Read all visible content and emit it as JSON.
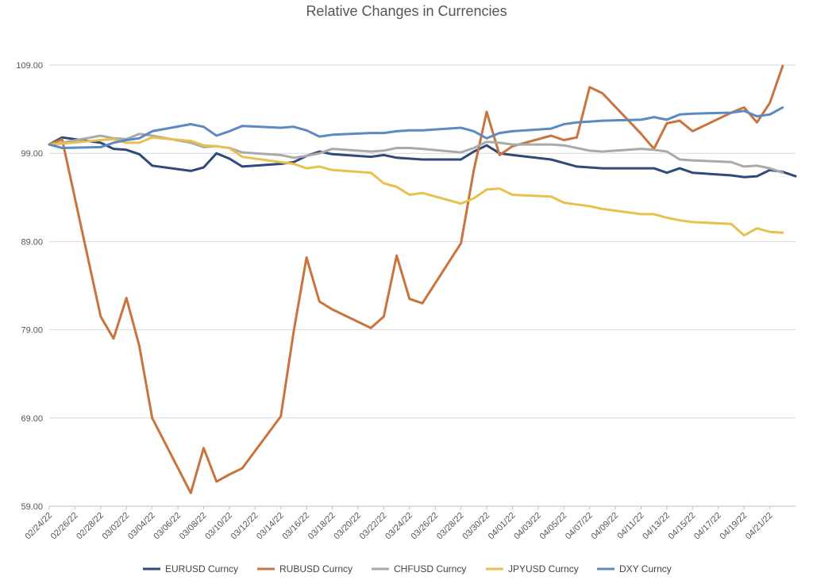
{
  "chart_data": {
    "type": "line",
    "title": "Relative Changes in Currencies",
    "xlabel": "",
    "ylabel": "",
    "ylim": [
      59,
      109
    ],
    "yticks": [
      "59.00",
      "69.00",
      "79.00",
      "89.00",
      "99.00",
      "109.00"
    ],
    "x_tick_labels": [
      "02/24/22",
      "02/26/22",
      "02/28/22",
      "03/02/22",
      "03/04/22",
      "03/06/22",
      "03/08/22",
      "03/10/22",
      "03/12/22",
      "03/14/22",
      "03/16/22",
      "03/18/22",
      "03/20/22",
      "03/22/22",
      "03/24/22",
      "03/26/22",
      "03/28/22",
      "03/30/22",
      "04/01/22",
      "04/03/22",
      "04/05/22",
      "04/07/22",
      "04/09/22",
      "04/11/22",
      "04/13/22",
      "04/15/22",
      "04/17/22",
      "04/19/22",
      "04/21/22"
    ],
    "grid": true,
    "legend_position": "bottom",
    "series": [
      {
        "name": "EURUSD Curncy",
        "color": "#2E4A7A",
        "points": [
          [
            "02/24/22",
            100.0
          ],
          [
            "02/25/22",
            100.8
          ],
          [
            "02/28/22",
            100.2
          ],
          [
            "03/01/22",
            99.5
          ],
          [
            "03/02/22",
            99.4
          ],
          [
            "03/03/22",
            98.9
          ],
          [
            "03/04/22",
            97.6
          ],
          [
            "03/07/22",
            97.0
          ],
          [
            "03/08/22",
            97.4
          ],
          [
            "03/09/22",
            99.0
          ],
          [
            "03/10/22",
            98.4
          ],
          [
            "03/11/22",
            97.5
          ],
          [
            "03/14/22",
            97.8
          ],
          [
            "03/15/22",
            98.0
          ],
          [
            "03/16/22",
            98.7
          ],
          [
            "03/17/22",
            99.2
          ],
          [
            "03/18/22",
            98.9
          ],
          [
            "03/21/22",
            98.6
          ],
          [
            "03/22/22",
            98.8
          ],
          [
            "03/23/22",
            98.5
          ],
          [
            "03/24/22",
            98.4
          ],
          [
            "03/25/22",
            98.3
          ],
          [
            "03/28/22",
            98.3
          ],
          [
            "03/29/22",
            99.2
          ],
          [
            "03/30/22",
            99.9
          ],
          [
            "03/31/22",
            99.0
          ],
          [
            "04/01/22",
            98.8
          ],
          [
            "04/04/22",
            98.3
          ],
          [
            "04/05/22",
            97.9
          ],
          [
            "04/06/22",
            97.5
          ],
          [
            "04/07/22",
            97.4
          ],
          [
            "04/08/22",
            97.3
          ],
          [
            "04/11/22",
            97.3
          ],
          [
            "04/12/22",
            97.3
          ],
          [
            "04/13/22",
            96.8
          ],
          [
            "04/14/22",
            97.3
          ],
          [
            "04/15/22",
            96.8
          ],
          [
            "04/18/22",
            96.5
          ],
          [
            "04/19/22",
            96.3
          ],
          [
            "04/20/22",
            96.4
          ],
          [
            "04/21/22",
            97.1
          ],
          [
            "04/22/22",
            96.9
          ],
          [
            "04/23/22",
            96.4
          ]
        ]
      },
      {
        "name": "RUBUSD Curncy",
        "color": "#C9733D",
        "points": [
          [
            "02/24/22",
            100.0
          ],
          [
            "02/25/22",
            100.6
          ],
          [
            "02/28/22",
            80.5
          ],
          [
            "03/01/22",
            78.0
          ],
          [
            "03/02/22",
            82.6
          ],
          [
            "03/03/22",
            77.2
          ],
          [
            "03/04/22",
            69.0
          ],
          [
            "03/07/22",
            60.5
          ],
          [
            "03/08/22",
            65.6
          ],
          [
            "03/09/22",
            61.8
          ],
          [
            "03/10/22",
            62.6
          ],
          [
            "03/11/22",
            63.3
          ],
          [
            "03/14/22",
            69.2
          ],
          [
            "03/15/22",
            78.8
          ],
          [
            "03/16/22",
            87.2
          ],
          [
            "03/17/22",
            82.2
          ],
          [
            "03/18/22",
            81.3
          ],
          [
            "03/21/22",
            79.2
          ],
          [
            "03/22/22",
            80.5
          ],
          [
            "03/23/22",
            87.4
          ],
          [
            "03/24/22",
            82.5
          ],
          [
            "03/25/22",
            82.0
          ],
          [
            "03/28/22",
            88.8
          ],
          [
            "03/29/22",
            97.1
          ],
          [
            "03/30/22",
            103.7
          ],
          [
            "03/31/22",
            98.8
          ],
          [
            "04/01/22",
            99.8
          ],
          [
            "04/04/22",
            101.0
          ],
          [
            "04/05/22",
            100.5
          ],
          [
            "04/06/22",
            100.8
          ],
          [
            "04/07/22",
            106.5
          ],
          [
            "04/08/22",
            105.8
          ],
          [
            "04/11/22",
            101.2
          ],
          [
            "04/12/22",
            99.5
          ],
          [
            "04/13/22",
            102.4
          ],
          [
            "04/14/22",
            102.7
          ],
          [
            "04/15/22",
            101.5
          ],
          [
            "04/18/22",
            103.6
          ],
          [
            "04/19/22",
            104.2
          ],
          [
            "04/20/22",
            102.5
          ],
          [
            "04/21/22",
            104.7
          ],
          [
            "04/22/22",
            108.9
          ]
        ]
      },
      {
        "name": "CHFUSD Curncy",
        "color": "#AAAAAA",
        "points": [
          [
            "02/24/22",
            100.0
          ],
          [
            "02/25/22",
            100.2
          ],
          [
            "02/28/22",
            101.0
          ],
          [
            "03/01/22",
            100.7
          ],
          [
            "03/02/22",
            100.6
          ],
          [
            "03/03/22",
            101.2
          ],
          [
            "03/04/22",
            101.0
          ],
          [
            "03/07/22",
            100.2
          ],
          [
            "03/08/22",
            99.7
          ],
          [
            "03/09/22",
            99.8
          ],
          [
            "03/10/22",
            99.6
          ],
          [
            "03/11/22",
            99.1
          ],
          [
            "03/14/22",
            98.8
          ],
          [
            "03/15/22",
            98.5
          ],
          [
            "03/16/22",
            98.7
          ],
          [
            "03/17/22",
            99.0
          ],
          [
            "03/18/22",
            99.5
          ],
          [
            "03/21/22",
            99.2
          ],
          [
            "03/22/22",
            99.3
          ],
          [
            "03/23/22",
            99.6
          ],
          [
            "03/24/22",
            99.6
          ],
          [
            "03/25/22",
            99.5
          ],
          [
            "03/28/22",
            99.1
          ],
          [
            "03/29/22",
            99.6
          ],
          [
            "03/30/22",
            100.3
          ],
          [
            "03/31/22",
            100.2
          ],
          [
            "04/01/22",
            100.0
          ],
          [
            "04/04/22",
            100.0
          ],
          [
            "04/05/22",
            99.9
          ],
          [
            "04/06/22",
            99.6
          ],
          [
            "04/07/22",
            99.3
          ],
          [
            "04/08/22",
            99.2
          ],
          [
            "04/11/22",
            99.5
          ],
          [
            "04/12/22",
            99.4
          ],
          [
            "04/13/22",
            99.2
          ],
          [
            "04/14/22",
            98.3
          ],
          [
            "04/15/22",
            98.2
          ],
          [
            "04/18/22",
            98.0
          ],
          [
            "04/19/22",
            97.5
          ],
          [
            "04/20/22",
            97.6
          ],
          [
            "04/21/22",
            97.3
          ],
          [
            "04/22/22",
            96.8
          ]
        ]
      },
      {
        "name": "JPYUSD Curncy",
        "color": "#E8C04C",
        "points": [
          [
            "02/24/22",
            100.0
          ],
          [
            "02/25/22",
            100.1
          ],
          [
            "02/28/22",
            100.5
          ],
          [
            "03/01/22",
            100.6
          ],
          [
            "03/02/22",
            100.2
          ],
          [
            "03/03/22",
            100.2
          ],
          [
            "03/04/22",
            100.8
          ],
          [
            "03/07/22",
            100.4
          ],
          [
            "03/08/22",
            99.9
          ],
          [
            "03/09/22",
            99.8
          ],
          [
            "03/10/22",
            99.6
          ],
          [
            "03/11/22",
            98.6
          ],
          [
            "03/14/22",
            98.0
          ],
          [
            "03/15/22",
            97.8
          ],
          [
            "03/16/22",
            97.3
          ],
          [
            "03/17/22",
            97.5
          ],
          [
            "03/18/22",
            97.1
          ],
          [
            "03/21/22",
            96.8
          ],
          [
            "03/22/22",
            95.6
          ],
          [
            "03/23/22",
            95.2
          ],
          [
            "03/24/22",
            94.3
          ],
          [
            "03/25/22",
            94.5
          ],
          [
            "03/28/22",
            93.3
          ],
          [
            "03/29/22",
            93.9
          ],
          [
            "03/30/22",
            94.9
          ],
          [
            "03/31/22",
            95.0
          ],
          [
            "04/01/22",
            94.3
          ],
          [
            "04/04/22",
            94.1
          ],
          [
            "04/05/22",
            93.4
          ],
          [
            "04/06/22",
            93.2
          ],
          [
            "04/07/22",
            93.0
          ],
          [
            "04/08/22",
            92.7
          ],
          [
            "04/11/22",
            92.1
          ],
          [
            "04/12/22",
            92.1
          ],
          [
            "04/13/22",
            91.7
          ],
          [
            "04/14/22",
            91.4
          ],
          [
            "04/15/22",
            91.2
          ],
          [
            "04/18/22",
            91.0
          ],
          [
            "04/19/22",
            89.7
          ],
          [
            "04/20/22",
            90.5
          ],
          [
            "04/21/22",
            90.1
          ],
          [
            "04/22/22",
            90.0
          ]
        ]
      },
      {
        "name": "DXY Curncy",
        "color": "#5B8AC2",
        "points": [
          [
            "02/24/22",
            100.0
          ],
          [
            "02/25/22",
            99.6
          ],
          [
            "02/28/22",
            99.7
          ],
          [
            "03/01/22",
            100.2
          ],
          [
            "03/02/22",
            100.5
          ],
          [
            "03/03/22",
            100.7
          ],
          [
            "03/04/22",
            101.5
          ],
          [
            "03/07/22",
            102.3
          ],
          [
            "03/08/22",
            102.0
          ],
          [
            "03/09/22",
            101.0
          ],
          [
            "03/10/22",
            101.5
          ],
          [
            "03/11/22",
            102.1
          ],
          [
            "03/14/22",
            101.9
          ],
          [
            "03/15/22",
            102.0
          ],
          [
            "03/16/22",
            101.6
          ],
          [
            "03/17/22",
            100.9
          ],
          [
            "03/18/22",
            101.1
          ],
          [
            "03/21/22",
            101.3
          ],
          [
            "03/22/22",
            101.3
          ],
          [
            "03/23/22",
            101.5
          ],
          [
            "03/24/22",
            101.6
          ],
          [
            "03/25/22",
            101.6
          ],
          [
            "03/28/22",
            101.9
          ],
          [
            "03/29/22",
            101.5
          ],
          [
            "03/30/22",
            100.7
          ],
          [
            "03/31/22",
            101.3
          ],
          [
            "04/01/22",
            101.5
          ],
          [
            "04/04/22",
            101.8
          ],
          [
            "04/05/22",
            102.3
          ],
          [
            "04/06/22",
            102.5
          ],
          [
            "04/07/22",
            102.6
          ],
          [
            "04/08/22",
            102.7
          ],
          [
            "04/11/22",
            102.8
          ],
          [
            "04/12/22",
            103.1
          ],
          [
            "04/13/22",
            102.8
          ],
          [
            "04/14/22",
            103.4
          ],
          [
            "04/15/22",
            103.5
          ],
          [
            "04/18/22",
            103.6
          ],
          [
            "04/19/22",
            103.8
          ],
          [
            "04/20/22",
            103.2
          ],
          [
            "04/21/22",
            103.4
          ],
          [
            "04/22/22",
            104.2
          ]
        ]
      }
    ]
  }
}
